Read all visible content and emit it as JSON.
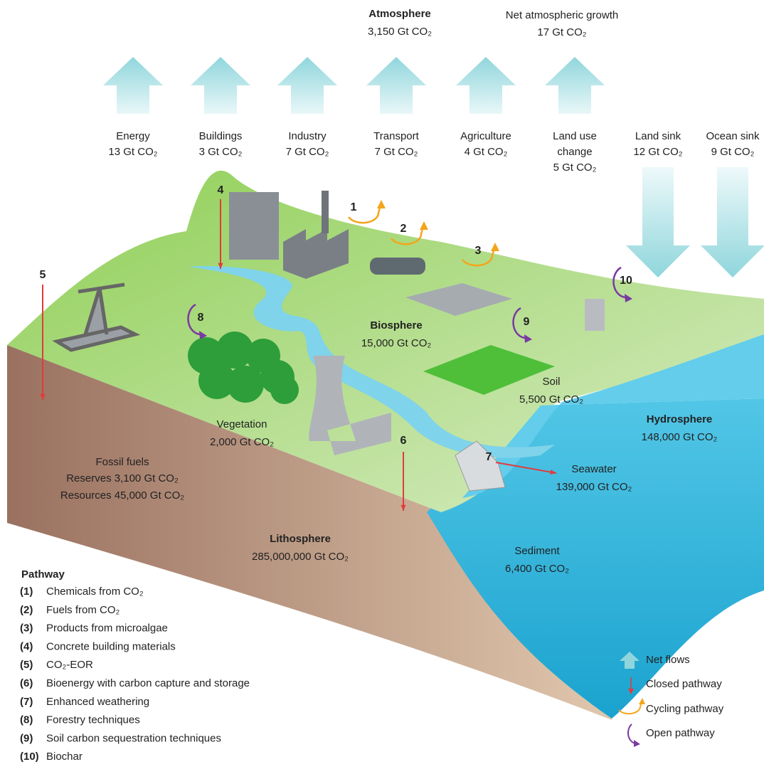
{
  "atmosphere": {
    "title": "Atmosphere",
    "amount": "3,150 Gt CO₂"
  },
  "net_growth": {
    "title": "Net atmospheric growth",
    "amount": "17 Gt CO₂"
  },
  "emissions": [
    {
      "lines": [
        "Energy"
      ],
      "amount": "13 Gt CO₂"
    },
    {
      "lines": [
        "Buildings"
      ],
      "amount": "3 Gt CO₂"
    },
    {
      "lines": [
        "Industry"
      ],
      "amount": "7 Gt CO₂"
    },
    {
      "lines": [
        "Transport"
      ],
      "amount": "7 Gt CO₂"
    },
    {
      "lines": [
        "Agriculture"
      ],
      "amount": "4 Gt CO₂"
    },
    {
      "lines": [
        "Land use",
        "change"
      ],
      "amount": "5 Gt CO₂"
    }
  ],
  "sinks": [
    {
      "label": "Land sink",
      "amount": "12 Gt CO₂"
    },
    {
      "label": "Ocean sink",
      "amount": "9 Gt CO₂"
    }
  ],
  "reservoirs": {
    "biosphere": {
      "title": "Biosphere",
      "amount": "15,000 Gt CO₂"
    },
    "soil": {
      "title": "Soil",
      "amount": "5,500 Gt CO₂"
    },
    "vegetation": {
      "title": "Vegetation",
      "amount": "2,000 Gt CO₂"
    },
    "hydrosphere": {
      "title": "Hydrosphere",
      "amount": "148,000 Gt CO₂"
    },
    "seawater": {
      "title": "Seawater",
      "amount": "139,000 Gt CO₂"
    },
    "sediment": {
      "title": "Sediment",
      "amount": "6,400 Gt CO₂"
    },
    "fossil_fuels": {
      "title": "Fossil fuels",
      "reserves": "Reserves 3,100 Gt CO₂",
      "resources": "Resources 45,000 Gt CO₂"
    },
    "lithosphere": {
      "title": "Lithosphere",
      "amount": "285,000,000 Gt CO₂"
    }
  },
  "markers": [
    "1",
    "2",
    "3",
    "4",
    "5",
    "6",
    "7",
    "8",
    "9",
    "10"
  ],
  "pathway_legend": {
    "title": "Pathway",
    "items": [
      {
        "number": "(1)",
        "label": "Chemicals from CO₂"
      },
      {
        "number": "(2)",
        "label": "Fuels from CO₂"
      },
      {
        "number": "(3)",
        "label": "Products from microalgae"
      },
      {
        "number": "(4)",
        "label": "Concrete building materials"
      },
      {
        "number": "(5)",
        "label": "CO₂-EOR"
      },
      {
        "number": "(6)",
        "label": "Bioenergy with carbon capture and storage"
      },
      {
        "number": "(7)",
        "label": "Enhanced weathering"
      },
      {
        "number": "(8)",
        "label": "Forestry techniques"
      },
      {
        "number": "(9)",
        "label": "Soil carbon sequestration techniques"
      },
      {
        "number": "(10)",
        "label": "Biochar"
      }
    ]
  },
  "flow_legend": [
    "Net flows",
    "Closed pathway",
    "Cycling pathway",
    "Open pathway"
  ]
}
